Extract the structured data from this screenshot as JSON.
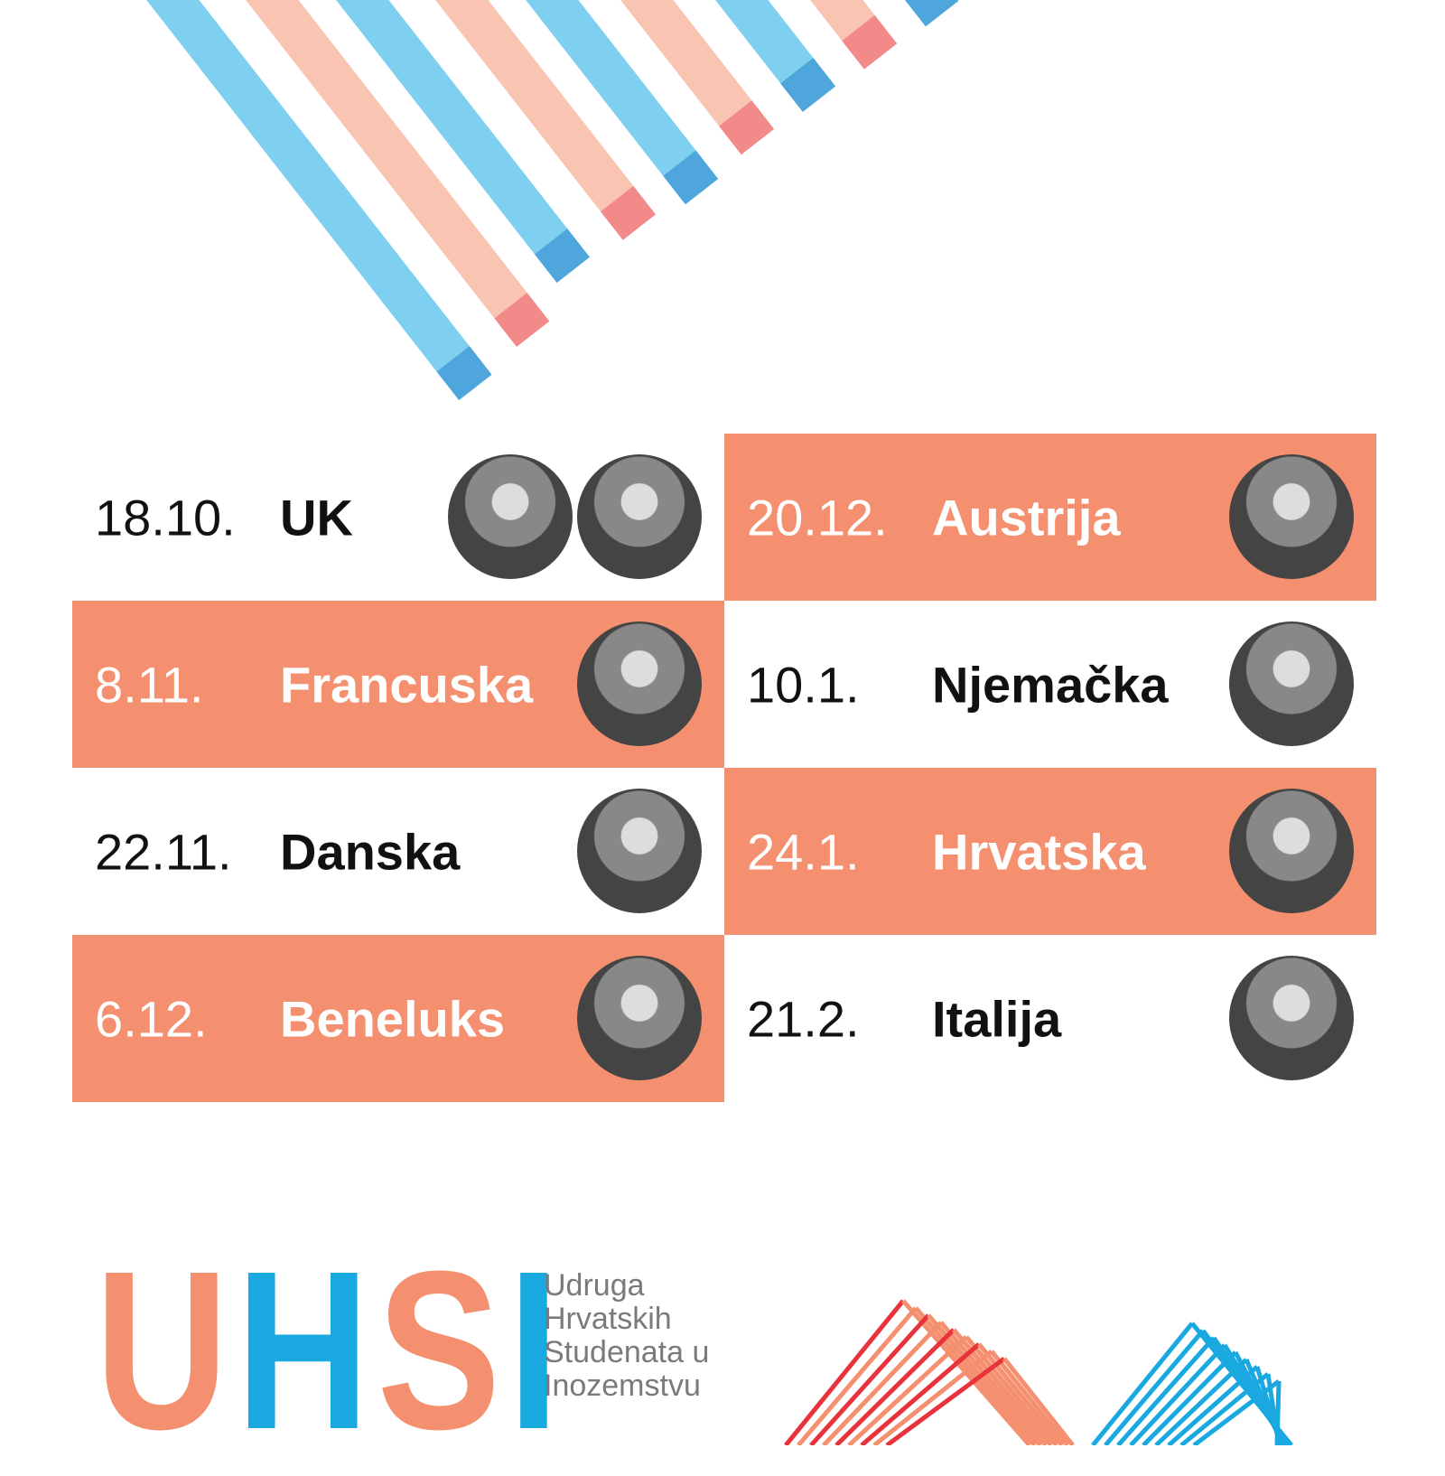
{
  "schedule": [
    {
      "date": "18.10.",
      "country": "UK"
    },
    {
      "date": "8.11.",
      "country": "Francuska"
    },
    {
      "date": "22.11.",
      "country": "Danska"
    },
    {
      "date": "6.12.",
      "country": "Beneluks"
    },
    {
      "date": "20.12.",
      "country": "Austrija"
    },
    {
      "date": "10.1.",
      "country": "Njemačka"
    },
    {
      "date": "24.1.",
      "country": "Hrvatska"
    },
    {
      "date": "21.2.",
      "country": "Italija"
    }
  ],
  "logo": {
    "letters": [
      "U",
      "H",
      "S",
      "I"
    ],
    "name_lines": [
      "Udruga",
      "Hrvatskih",
      "Studenata u",
      "Inozemstvu"
    ]
  }
}
